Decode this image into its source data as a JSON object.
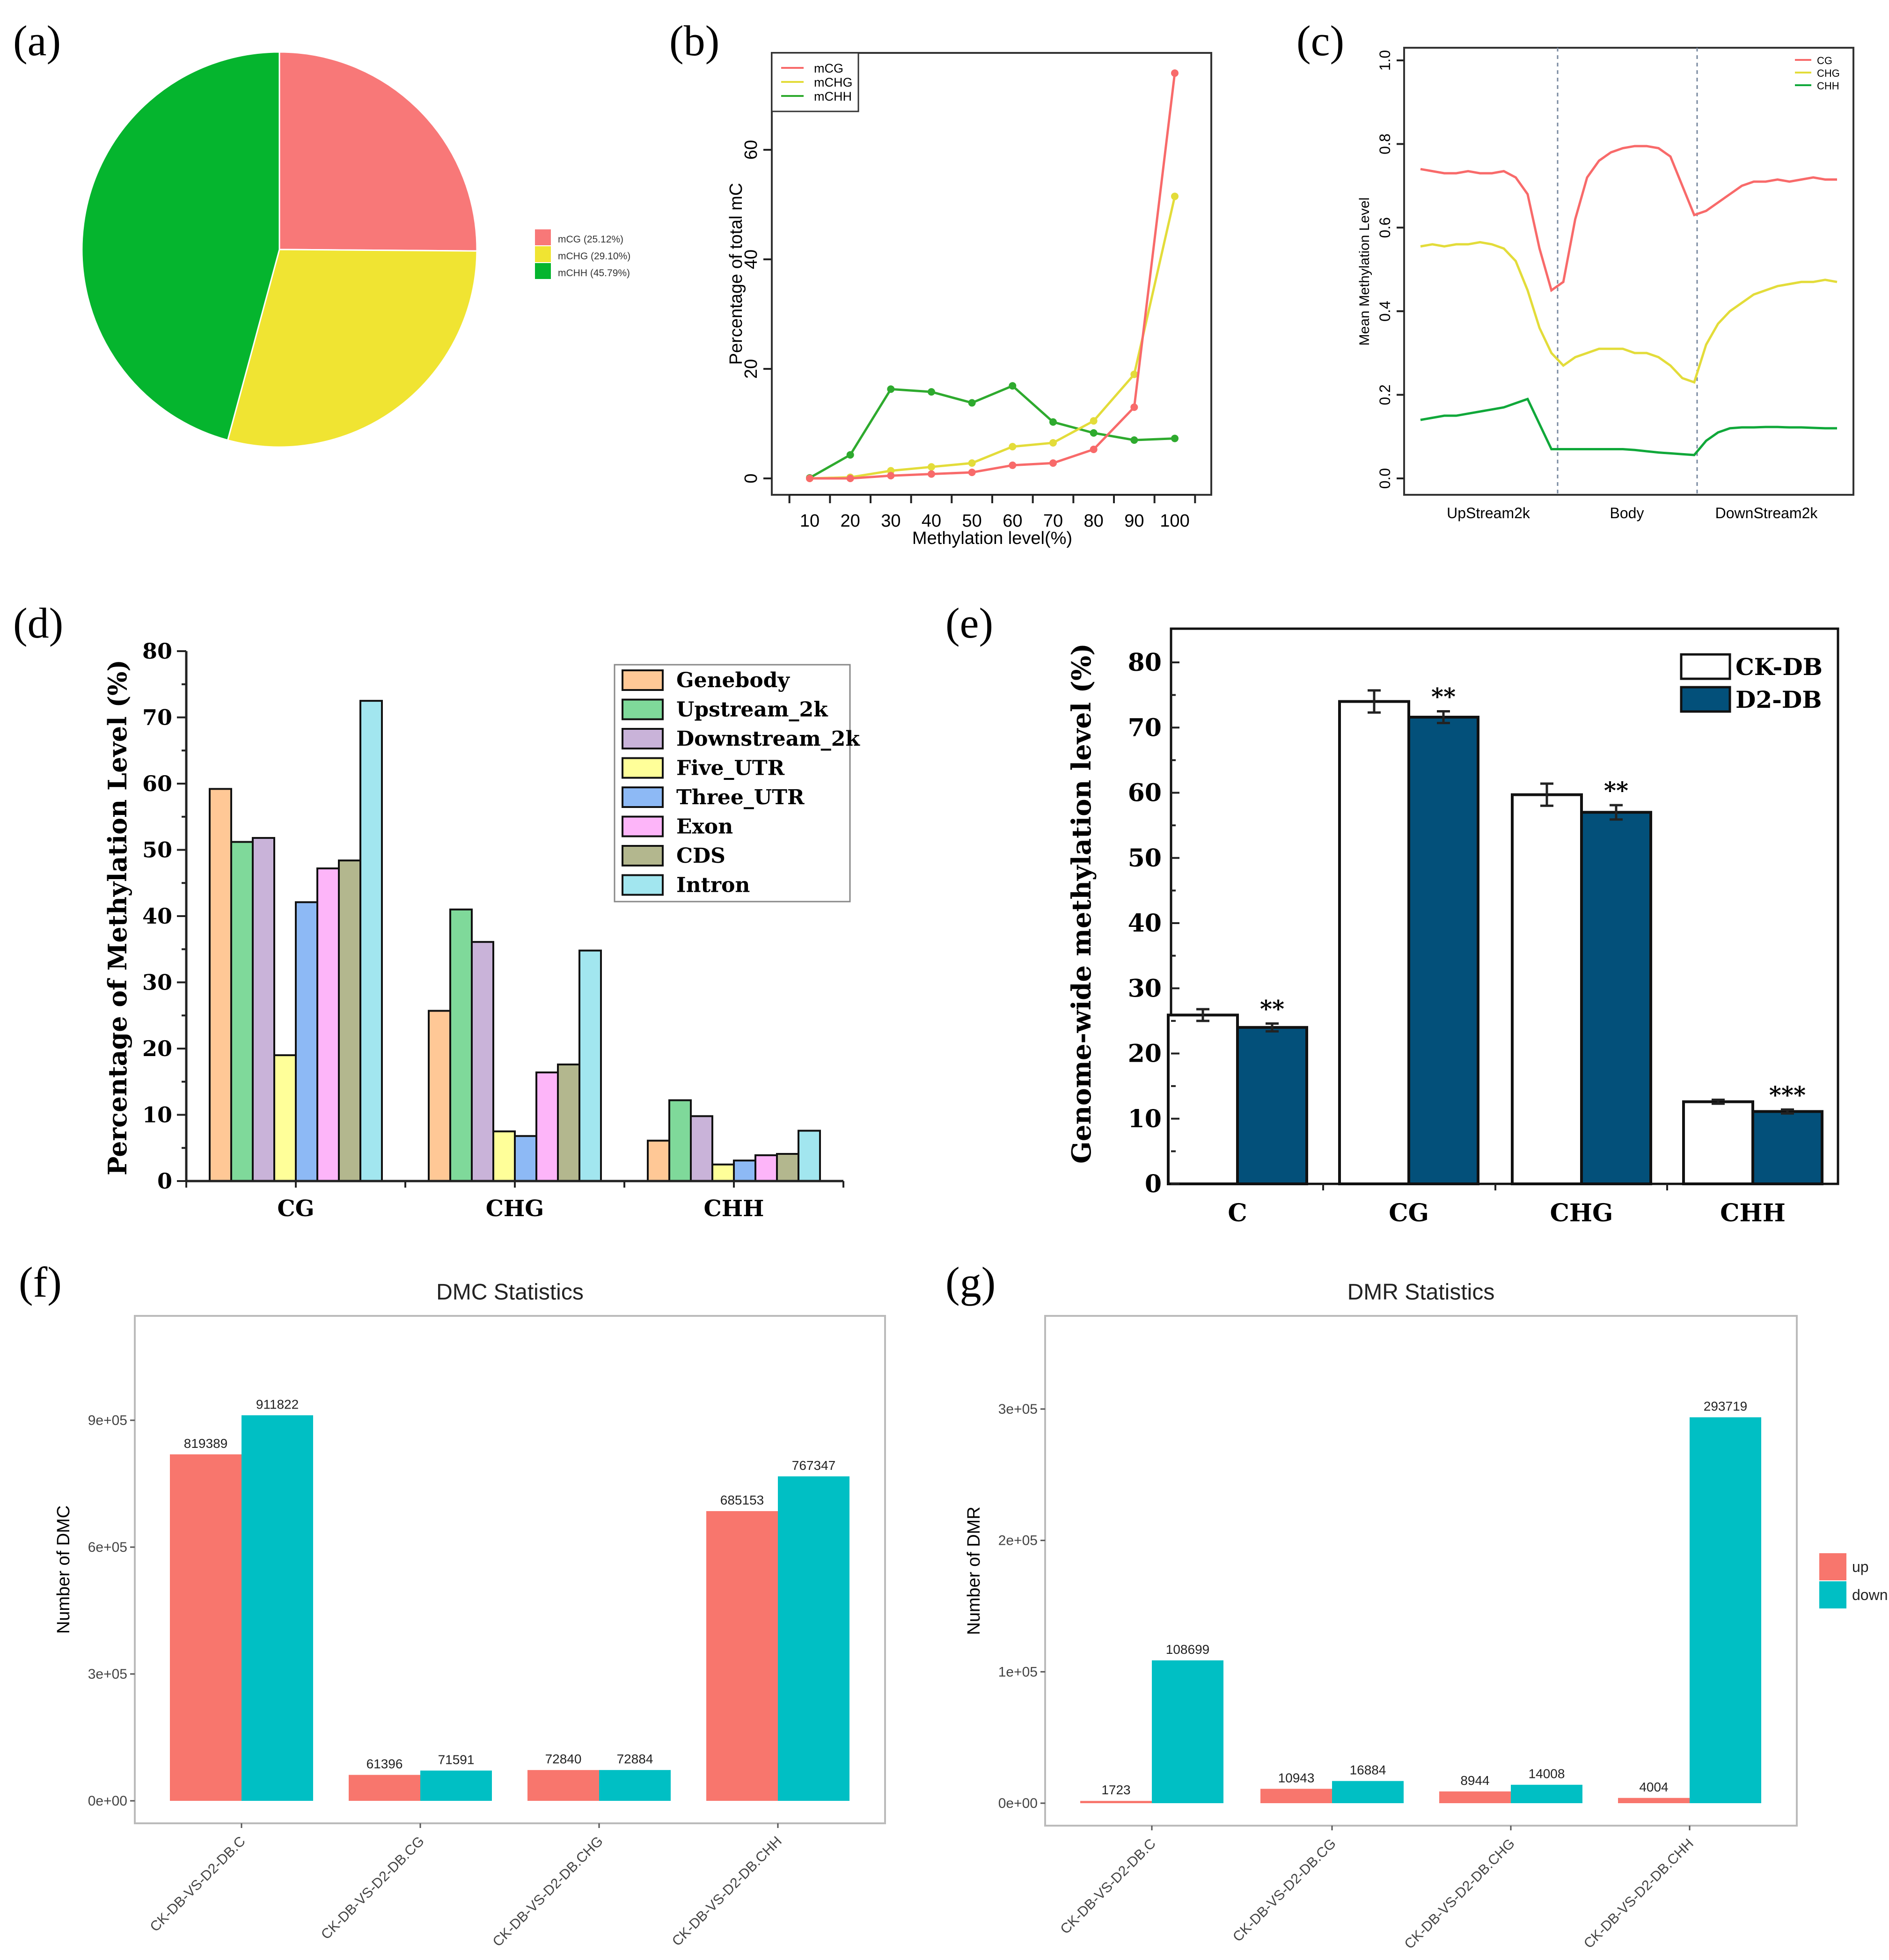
{
  "panel_labels": [
    "(a)",
    "(b)",
    "(c)",
    "(d)",
    "(e)",
    "(f)",
    "(g)"
  ],
  "chart_data": [
    {
      "id": "a",
      "type": "pie",
      "slices": [
        {
          "label": "mCG (25.12%)",
          "value": 25.12,
          "color": "#F87878"
        },
        {
          "label": "mCHG (29.10%)",
          "value": 29.1,
          "color": "#F0E432"
        },
        {
          "label": "mCHH (45.79%)",
          "value": 45.79,
          "color": "#05B52E"
        }
      ],
      "legend_position": "right"
    },
    {
      "id": "b",
      "type": "line",
      "xlabel": "Methylation level(%)",
      "ylabel": "Percentage of total mC",
      "x": [
        10,
        20,
        30,
        40,
        50,
        60,
        70,
        80,
        90,
        100
      ],
      "x_ticks": [
        "10",
        "20",
        "30",
        "40",
        "50",
        "60",
        "70",
        "80",
        "90",
        "100"
      ],
      "y_ticks": [
        "0",
        "20",
        "40",
        "60"
      ],
      "ylim": [
        0,
        75
      ],
      "legend_position": "top-left",
      "series": [
        {
          "name": "mCG",
          "color": "#F86A6A",
          "values": [
            0,
            0,
            0.5,
            0.8,
            1.1,
            2.4,
            2.8,
            5.3,
            13,
            74
          ]
        },
        {
          "name": "mCHG",
          "color": "#E3DC3A",
          "values": [
            0,
            0.2,
            1.4,
            2.1,
            2.8,
            5.8,
            6.5,
            10.5,
            19,
            51.5
          ]
        },
        {
          "name": "mCHH",
          "color": "#2EAA2E",
          "values": [
            0.1,
            4.3,
            16.3,
            15.8,
            13.8,
            16.9,
            10.3,
            8.3,
            7,
            7.3
          ]
        }
      ]
    },
    {
      "id": "c",
      "type": "line",
      "ylabel": "Mean Methylation Level",
      "regions": [
        "UpStream2k",
        "Body",
        "DownStream2k"
      ],
      "y_ticks": [
        "0.0",
        "0.2",
        "0.4",
        "0.6",
        "0.8",
        "1.0"
      ],
      "ylim": [
        0,
        1
      ],
      "legend_position": "top-right",
      "series": [
        {
          "name": "CG",
          "color": "#F86A6A",
          "values": [
            0.74,
            0.735,
            0.73,
            0.73,
            0.735,
            0.73,
            0.73,
            0.735,
            0.72,
            0.68,
            0.55,
            0.45,
            0.47,
            0.62,
            0.72,
            0.76,
            0.78,
            0.79,
            0.795,
            0.795,
            0.79,
            0.77,
            0.7,
            0.63,
            0.64,
            0.66,
            0.68,
            0.7,
            0.71,
            0.71,
            0.715,
            0.71,
            0.715,
            0.72,
            0.715,
            0.715
          ]
        },
        {
          "name": "CHG",
          "color": "#E3DC3A",
          "values": [
            0.555,
            0.56,
            0.555,
            0.56,
            0.56,
            0.565,
            0.56,
            0.55,
            0.52,
            0.45,
            0.36,
            0.3,
            0.27,
            0.29,
            0.3,
            0.31,
            0.31,
            0.31,
            0.3,
            0.3,
            0.29,
            0.27,
            0.24,
            0.23,
            0.32,
            0.37,
            0.4,
            0.42,
            0.44,
            0.45,
            0.46,
            0.465,
            0.47,
            0.47,
            0.475,
            0.47
          ]
        },
        {
          "name": "CHH",
          "color": "#10A83A",
          "values": [
            0.14,
            0.145,
            0.15,
            0.15,
            0.155,
            0.16,
            0.165,
            0.17,
            0.18,
            0.19,
            0.13,
            0.07,
            0.07,
            0.07,
            0.07,
            0.07,
            0.07,
            0.07,
            0.068,
            0.065,
            0.062,
            0.06,
            0.058,
            0.056,
            0.09,
            0.11,
            0.12,
            0.122,
            0.122,
            0.123,
            0.123,
            0.122,
            0.122,
            0.121,
            0.12,
            0.12
          ]
        }
      ]
    },
    {
      "id": "d",
      "type": "bar",
      "ylabel": "Percentage of Methylation Level (%)",
      "categories": [
        "CG",
        "CHG",
        "CHH"
      ],
      "y_ticks": [
        "0",
        "10",
        "20",
        "30",
        "40",
        "50",
        "60",
        "70",
        "80"
      ],
      "ylim": [
        0,
        80
      ],
      "legend_position": "top-right",
      "series": [
        {
          "name": "Genebody",
          "color": "#FFC896",
          "values": [
            59.2,
            25.7,
            6.1
          ]
        },
        {
          "name": "Upstream_2k",
          "color": "#7FD99A",
          "values": [
            51.2,
            41.0,
            12.2
          ]
        },
        {
          "name": "Downstream_2k",
          "color": "#C9B3D9",
          "values": [
            51.8,
            36.1,
            9.8
          ]
        },
        {
          "name": "Five_UTR",
          "color": "#FFFF99",
          "values": [
            19.0,
            7.5,
            2.5
          ]
        },
        {
          "name": "Three_UTR",
          "color": "#8DB9F5",
          "values": [
            42.1,
            6.8,
            3.1
          ]
        },
        {
          "name": "Exon",
          "color": "#FDB5F9",
          "values": [
            47.2,
            16.4,
            3.9
          ]
        },
        {
          "name": "CDS",
          "color": "#B3B78E",
          "values": [
            48.4,
            17.6,
            4.1
          ]
        },
        {
          "name": "Intron",
          "color": "#A2E6EF",
          "values": [
            72.5,
            34.8,
            7.6
          ]
        }
      ]
    },
    {
      "id": "e",
      "type": "bar",
      "ylabel": "Genome-wide methylation level (%)",
      "categories": [
        "C",
        "CG",
        "CHG",
        "CHH"
      ],
      "y_ticks": [
        "0",
        "10",
        "20",
        "30",
        "40",
        "50",
        "60",
        "70",
        "80"
      ],
      "ylim": [
        0,
        85
      ],
      "legend_position": "top-right",
      "significance": [
        "**",
        "**",
        "**",
        "***"
      ],
      "series": [
        {
          "name": "CK-DB",
          "color": "#FFFFFF",
          "values": [
            25.9,
            74.0,
            59.7,
            12.6
          ],
          "errors": [
            0.9,
            1.7,
            1.7,
            0.3
          ]
        },
        {
          "name": "D2-DB",
          "color": "#03507A",
          "values": [
            24.0,
            71.6,
            57.0,
            11.1
          ],
          "errors": [
            0.6,
            0.9,
            1.1,
            0.3
          ]
        }
      ]
    },
    {
      "id": "f",
      "type": "bar",
      "title": "DMC Statistics",
      "ylabel": "Number of DMC",
      "categories": [
        "CK-DB-VS-D2-DB.C",
        "CK-DB-VS-D2-DB.CG",
        "CK-DB-VS-D2-DB.CHG",
        "CK-DB-VS-D2-DB.CHH"
      ],
      "y_ticks": [
        "0e+00",
        "3e+05",
        "6e+05",
        "9e+05"
      ],
      "y_tick_values": [
        0,
        300000,
        600000,
        900000
      ],
      "series": [
        {
          "name": "up",
          "color": "#F8766D",
          "values": [
            819389,
            61396,
            72840,
            685153
          ]
        },
        {
          "name": "down",
          "color": "#00BFC4",
          "values": [
            911822,
            71591,
            72884,
            767347
          ]
        }
      ]
    },
    {
      "id": "g",
      "type": "bar",
      "title": "DMR Statistics",
      "ylabel": "Number of DMR",
      "categories": [
        "CK-DB-VS-D2-DB.C",
        "CK-DB-VS-D2-DB.CG",
        "CK-DB-VS-D2-DB.CHG",
        "CK-DB-VS-D2-DB.CHH"
      ],
      "y_ticks": [
        "0e+00",
        "1e+05",
        "2e+05",
        "3e+05"
      ],
      "y_tick_values": [
        0,
        100000,
        200000,
        300000
      ],
      "legend_position": "right",
      "series": [
        {
          "name": "up",
          "color": "#F8766D",
          "values": [
            1723,
            10943,
            8944,
            4004
          ]
        },
        {
          "name": "down",
          "color": "#00BFC4",
          "values": [
            108699,
            16884,
            14008,
            293719
          ]
        }
      ]
    }
  ]
}
